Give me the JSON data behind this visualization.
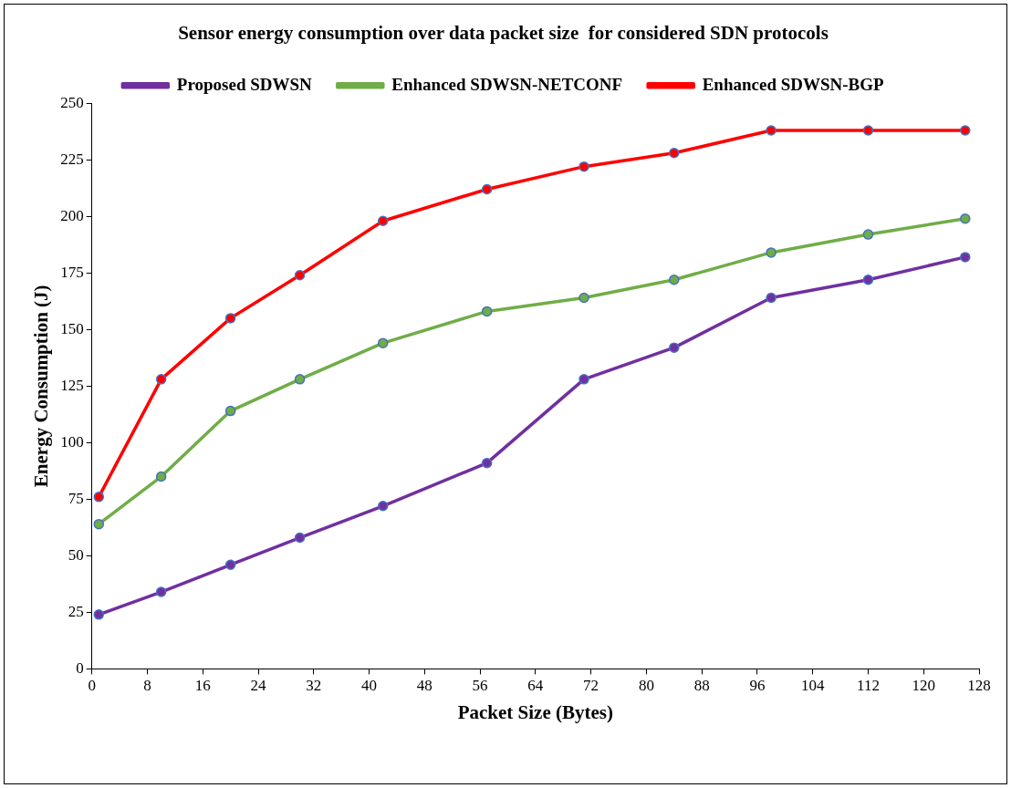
{
  "chart_data": {
    "type": "line",
    "title": "Sensor energy consumption over data packet size  for considered SDN protocols",
    "xlabel": "Packet Size (Bytes)",
    "ylabel": "Energy Consumption (J)",
    "x": [
      1,
      10,
      20,
      30,
      42,
      57,
      71,
      84,
      98,
      112,
      126
    ],
    "xlim": [
      0,
      128
    ],
    "xticks": [
      0,
      8,
      16,
      24,
      32,
      40,
      48,
      56,
      64,
      72,
      80,
      88,
      96,
      104,
      112,
      120,
      128
    ],
    "ylim": [
      0,
      250
    ],
    "yticks": [
      0,
      25,
      50,
      75,
      100,
      125,
      150,
      175,
      200,
      225,
      250
    ],
    "grid": false,
    "legend": "top",
    "marker": "circle",
    "line_style": "solid",
    "series": [
      {
        "name": "Proposed SDWSN",
        "color": "#7030a0",
        "values": [
          24,
          34,
          46,
          58,
          72,
          91,
          128,
          142,
          164,
          172,
          182
        ]
      },
      {
        "name": "Enhanced SDWSN-NETCONF",
        "color": "#70ad47",
        "values": [
          64,
          85,
          114,
          128,
          144,
          158,
          164,
          172,
          184,
          192,
          199
        ]
      },
      {
        "name": "Enhanced SDWSN-BGP",
        "color": "#ff0000",
        "values": [
          76,
          128,
          155,
          174,
          198,
          212,
          222,
          228,
          238,
          238,
          238
        ]
      }
    ]
  }
}
